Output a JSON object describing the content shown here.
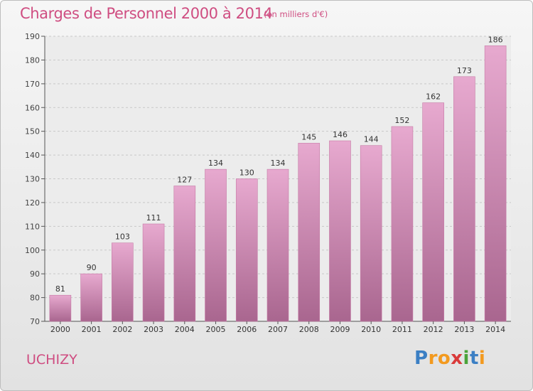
{
  "header": {
    "title": "Charges de Personnel 2000 à 2014",
    "subtitle": "(en milliers d'€)"
  },
  "footer": {
    "commune": "UCHIZY",
    "brand": "Proxiti",
    "brand_letters": [
      {
        "char": "P",
        "color": "#3b7fc4"
      },
      {
        "char": "r",
        "color": "#f39a1f"
      },
      {
        "char": "o",
        "color": "#f39a1f"
      },
      {
        "char": "x",
        "color": "#d93a3a"
      },
      {
        "char": "i",
        "color": "#4aa33a"
      },
      {
        "char": "t",
        "color": "#3b7fc4"
      },
      {
        "char": "i",
        "color": "#f39a1f"
      }
    ]
  },
  "colors": {
    "accent": "#cf4d81",
    "bar_top": "#e7a9cf",
    "bar_bottom": "#a9668f",
    "grid": "#c8c8c8"
  },
  "chart_data": {
    "type": "bar",
    "categories": [
      "2000",
      "2001",
      "2002",
      "2003",
      "2004",
      "2005",
      "2006",
      "2007",
      "2008",
      "2009",
      "2010",
      "2011",
      "2012",
      "2013",
      "2014"
    ],
    "values": [
      81,
      90,
      103,
      111,
      127,
      134,
      130,
      134,
      145,
      146,
      144,
      152,
      162,
      173,
      186
    ],
    "ylim": [
      70,
      190
    ],
    "yticks": [
      70,
      80,
      90,
      100,
      110,
      120,
      130,
      140,
      150,
      160,
      170,
      180,
      190
    ],
    "grid": true,
    "xlabel": "",
    "ylabel": ""
  }
}
